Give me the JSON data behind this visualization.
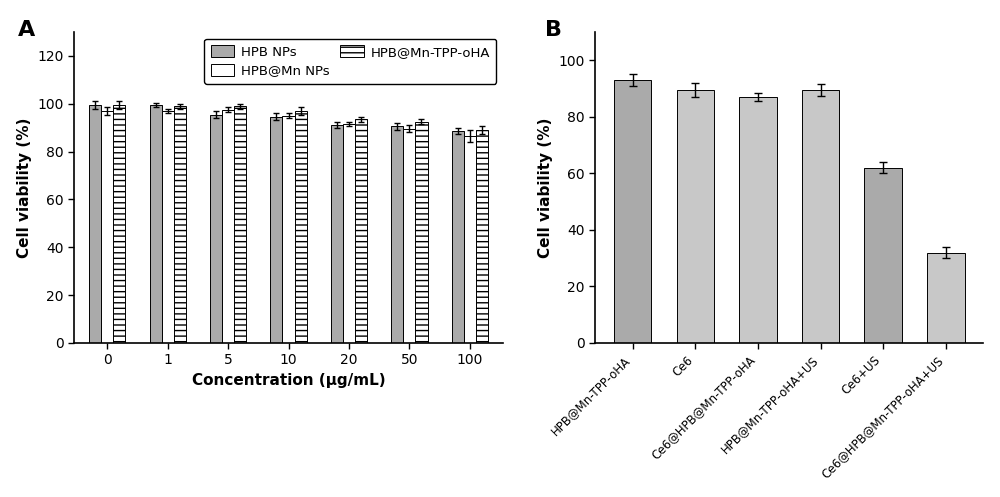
{
  "panel_A": {
    "title": "A",
    "xlabel": "Concentration (μg/mL)",
    "ylabel": "Cell viability (%)",
    "ylim": [
      0,
      130
    ],
    "yticks": [
      0,
      20,
      40,
      60,
      80,
      100,
      120
    ],
    "concentrations": [
      "0",
      "1",
      "5",
      "10",
      "20",
      "50",
      "100"
    ],
    "series": {
      "HPB NPs": {
        "values": [
          99.5,
          99.5,
          95.5,
          94.5,
          91.0,
          90.5,
          88.5
        ],
        "errors": [
          1.5,
          1.0,
          1.5,
          1.5,
          1.2,
          1.5,
          1.2
        ],
        "color": "#aaaaaa",
        "hatch": null
      },
      "HPB@Mn NPs": {
        "values": [
          97.0,
          97.0,
          97.5,
          95.0,
          91.5,
          89.5,
          86.5
        ],
        "errors": [
          1.5,
          1.0,
          1.0,
          1.0,
          1.0,
          1.5,
          2.5
        ],
        "color": "#ffffff",
        "hatch": null
      },
      "HPB@Mn-TPP-oHA": {
        "values": [
          99.5,
          99.0,
          99.0,
          97.0,
          93.5,
          92.5,
          89.0
        ],
        "errors": [
          1.5,
          1.0,
          1.0,
          1.5,
          1.0,
          1.0,
          1.5
        ],
        "color": "#ffffff",
        "hatch": "---"
      }
    },
    "legend_order": [
      "HPB NPs",
      "HPB@Mn NPs",
      "HPB@Mn-TPP-oHA"
    ]
  },
  "panel_B": {
    "title": "B",
    "ylabel": "Cell viability (%)",
    "ylim": [
      0,
      110
    ],
    "yticks": [
      0,
      20,
      40,
      60,
      80,
      100
    ],
    "categories": [
      "HPB@Mn-TPP-oHA",
      "Ce6",
      "Ce6@HPB@Mn-TPP-oHA",
      "HPB@Mn-TPP-oHA+US",
      "Ce6+US",
      "Ce6@HPB@Mn-TPP-oHA+US"
    ],
    "values": [
      93.0,
      89.5,
      87.0,
      89.5,
      62.0,
      32.0
    ],
    "errors": [
      2.0,
      2.5,
      1.5,
      2.0,
      2.0,
      2.0
    ],
    "bar_colors": [
      "#aaaaaa",
      "#c8c8c8",
      "#c8c8c8",
      "#c8c8c8",
      "#aaaaaa",
      "#c8c8c8"
    ]
  },
  "background_color": "#ffffff",
  "tick_fontsize": 10,
  "label_fontsize": 11,
  "legend_fontsize": 9.5
}
